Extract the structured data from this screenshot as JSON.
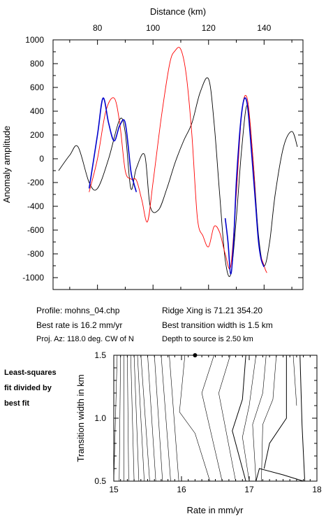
{
  "chart_data": [
    {
      "type": "line",
      "title": "",
      "xlabel": "Distance (km)",
      "ylabel": "Anomaly amplitude",
      "xticks": [
        80,
        100,
        120,
        140
      ],
      "yticks": [
        1000,
        800,
        600,
        400,
        200,
        0,
        -200,
        -400,
        -600,
        -800,
        -1000
      ],
      "xlim": [
        64,
        154
      ],
      "ylim": [
        -1100,
        1000
      ],
      "grid": false,
      "series": [
        {
          "color": "#000000",
          "x": [
            66,
            70,
            73,
            77,
            80,
            84,
            88,
            90,
            92,
            94,
            97,
            99,
            102,
            105,
            108,
            111,
            114,
            117,
            120,
            122,
            124,
            126,
            128,
            130,
            132,
            134,
            136,
            138,
            140,
            142,
            144,
            147,
            150,
            152
          ],
          "y": [
            -100,
            30,
            100,
            -200,
            -250,
            0,
            330,
            220,
            -250,
            -80,
            30,
            -400,
            -430,
            -250,
            -30,
            150,
            300,
            560,
            670,
            300,
            -300,
            -850,
            -970,
            -500,
            100,
            450,
            0,
            -650,
            -900,
            -700,
            -300,
            100,
            230,
            100
          ]
        },
        {
          "color": "#ff0000",
          "x": [
            77,
            80,
            83,
            86,
            88,
            90,
            92,
            94,
            96,
            98,
            100,
            103,
            106,
            108,
            110,
            112,
            114,
            116,
            118,
            120,
            122,
            124,
            126,
            128,
            130,
            132,
            134,
            136,
            138,
            140,
            141
          ],
          "y": [
            -280,
            0,
            400,
            510,
            300,
            -100,
            -170,
            -180,
            -350,
            -530,
            -200,
            350,
            800,
            910,
            920,
            700,
            200,
            -500,
            -650,
            -740,
            -570,
            -620,
            -800,
            -900,
            -300,
            400,
            500,
            0,
            -700,
            -900,
            -960
          ]
        },
        {
          "color": "#0000cc",
          "x": [
            77,
            80,
            82,
            84,
            86,
            88,
            90,
            92,
            93,
            94
          ],
          "y": [
            -250,
            200,
            510,
            300,
            150,
            280,
            300,
            -100,
            -200,
            -280
          ]
        },
        {
          "color": "#0000cc",
          "x": [
            126,
            127,
            128,
            129,
            130,
            131,
            132,
            133,
            134,
            135,
            136,
            137,
            138,
            139,
            140
          ],
          "y": [
            -500,
            -700,
            -970,
            -700,
            -200,
            150,
            400,
            510,
            450,
            200,
            -100,
            -400,
            -700,
            -850,
            -910
          ]
        }
      ]
    },
    {
      "type": "contour",
      "title": "",
      "xlabel": "Rate in mm/yr",
      "ylabel": "Transition width in km",
      "xticks": [
        15,
        16,
        17,
        18
      ],
      "yticks": [
        0.5,
        1.0,
        1.5
      ],
      "xlim": [
        15,
        18
      ],
      "ylim": [
        0.5,
        1.5
      ],
      "best_fit_point": {
        "x": 16.2,
        "y": 1.5
      }
    }
  ],
  "info": {
    "profile": "Profile: mohns_04.chp",
    "ridge_xing": "Ridge Xing is 71.21 354.20",
    "best_rate": "Best rate is 16.2 mm/yr",
    "best_transition": "Best transition width is 1.5 km",
    "proj_az": "Proj. Az: 118.0 deg. CW of N",
    "depth": "Depth to source is    2.50 km"
  },
  "side_label": [
    "Least-squares",
    "fit divided by",
    "best fit"
  ]
}
